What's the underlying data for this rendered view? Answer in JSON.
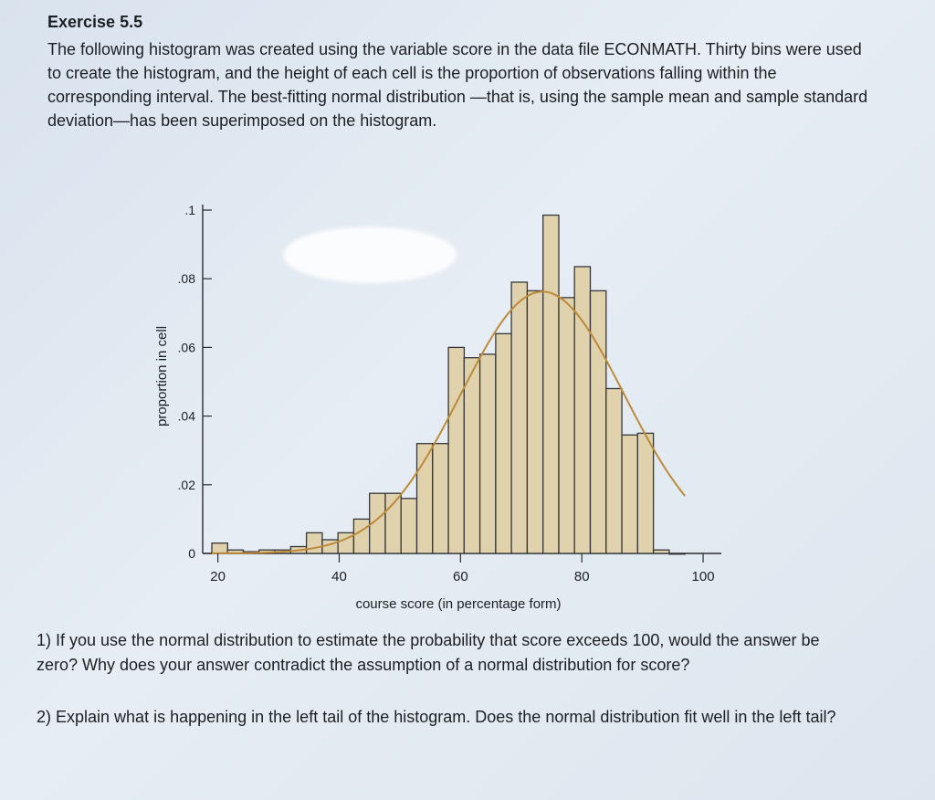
{
  "exercise": {
    "heading": "Exercise 5.5",
    "intro": "The following histogram was created using the variable score in the data file ECONMATH. Thirty bins were used to create the histogram, and the height of each cell is the proportion of observations falling within the corresponding interval. The best-fitting normal distribution —that is, using the sample mean and sample standard deviation—has been superimposed on the histogram."
  },
  "questions": [
    "1) If you use the normal distribution to estimate the probability that score exceeds 100, would the answer be zero? Why does your answer contradict the assumption of a normal distribution for score?",
    "2) Explain what is happening in the left tail of the histogram. Does the normal distribution fit well in the left tail?"
  ],
  "chart_data": {
    "type": "bar",
    "xlabel": "course score (in percentage form)",
    "ylabel": "proportion in cell",
    "xlim": [
      17.5,
      103
    ],
    "ylim": [
      0,
      0.1
    ],
    "x_ticks": [
      20,
      40,
      60,
      80,
      100
    ],
    "x_tick_labels": [
      "20",
      "40",
      "60",
      "80",
      "100"
    ],
    "y_ticks": [
      0,
      0.02,
      0.04,
      0.06,
      0.08,
      0.1
    ],
    "y_tick_labels": [
      "0",
      ".02",
      ".04",
      ".06",
      ".08",
      ".1"
    ],
    "bin_edges": [
      19.0,
      21.6,
      24.2,
      26.8,
      29.4,
      32.0,
      34.6,
      37.2,
      39.8,
      42.4,
      45.0,
      47.6,
      50.2,
      52.8,
      55.4,
      58.0,
      60.6,
      63.2,
      65.8,
      68.4,
      71.0,
      73.6,
      76.2,
      78.8,
      81.4,
      84.0,
      86.6,
      89.2,
      91.8,
      94.4,
      97.0
    ],
    "values": [
      0.003,
      0.001,
      0.0005,
      0.001,
      0.001,
      0.002,
      0.006,
      0.004,
      0.006,
      0.01,
      0.0175,
      0.0175,
      0.016,
      0.032,
      0.032,
      0.06,
      0.057,
      0.058,
      0.064,
      0.079,
      0.0765,
      0.0985,
      0.0745,
      0.0835,
      0.0765,
      0.048,
      0.0345,
      0.035,
      0.001,
      0.0
    ],
    "normal_curve": {
      "mean": 73.5,
      "sd": 13.5,
      "scale": 2.58
    },
    "colors": {
      "bar_fill": "#dfd2ad",
      "bar_stroke": "#34363a",
      "curve": "#bd8a3a",
      "axis": "#2a2d33"
    }
  }
}
